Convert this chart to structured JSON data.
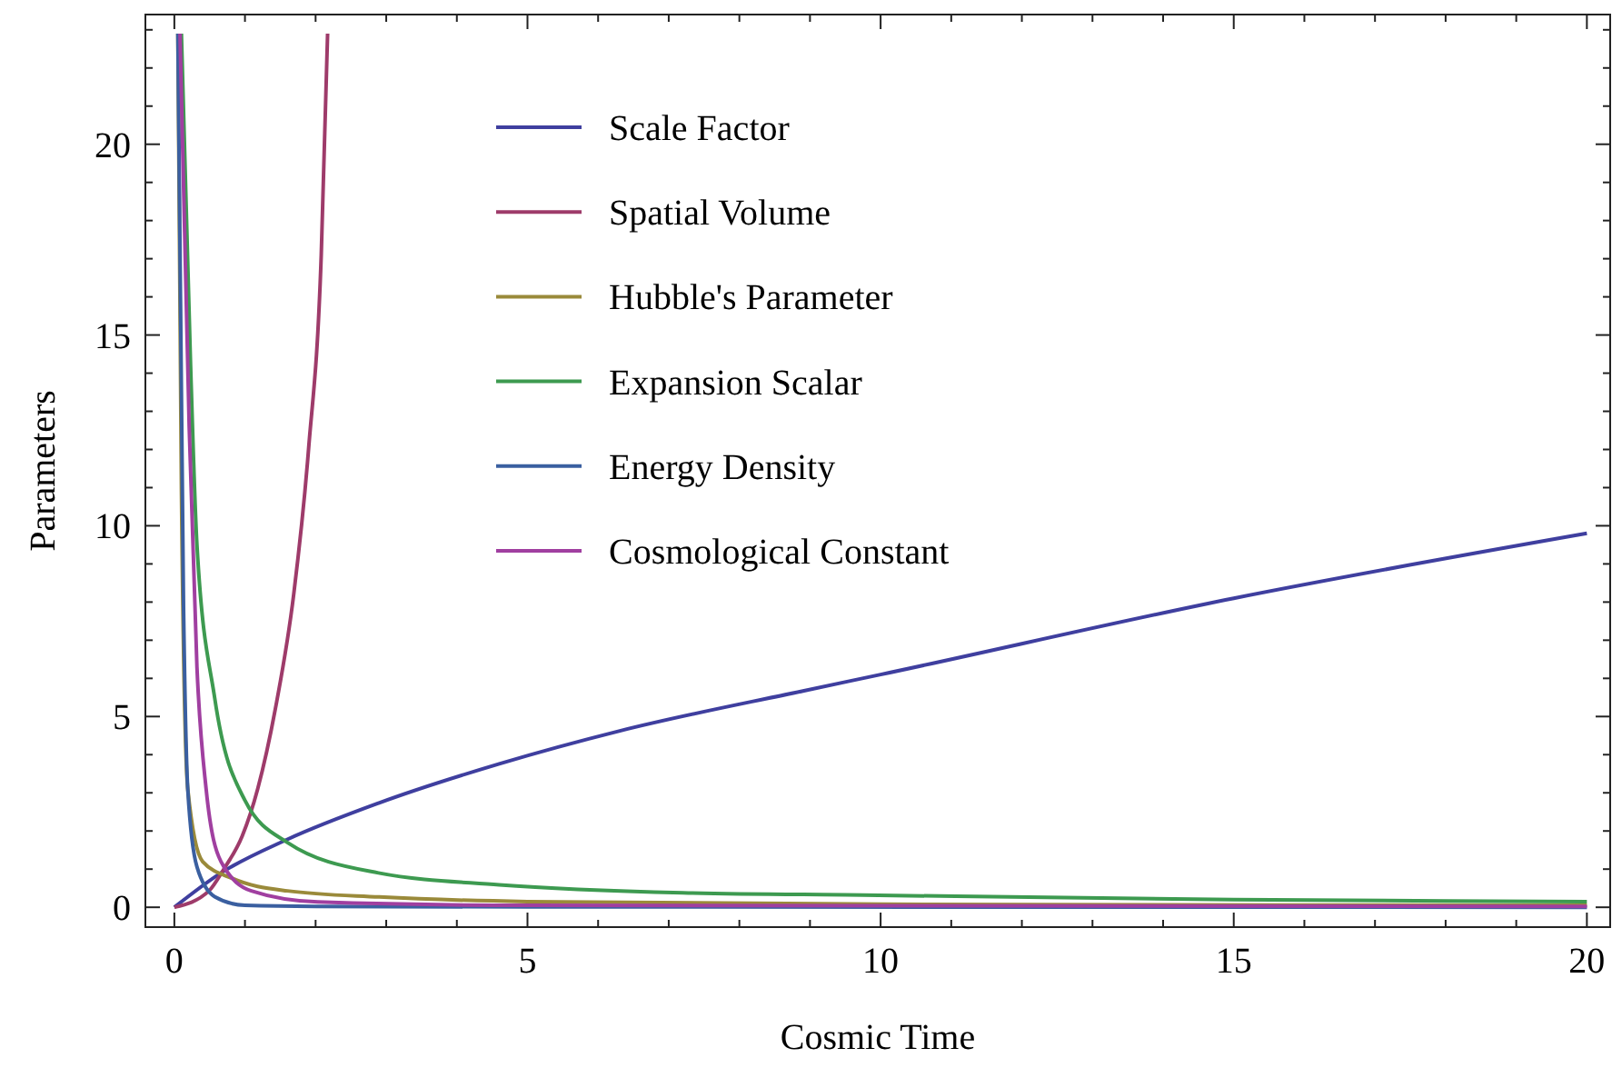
{
  "chart_data": {
    "type": "line",
    "xlabel": "Cosmic Time",
    "ylabel": "Parameters",
    "xlim": [
      -0.41,
      20.33
    ],
    "ylim": [
      -0.52,
      23.4
    ],
    "xticks": [
      0,
      {
        "value": 1,
        "label": null
      },
      {
        "value": 2,
        "label": null
      },
      {
        "value": 3,
        "label": null
      },
      {
        "value": 4,
        "label": null
      },
      5,
      {
        "value": 6,
        "label": null
      },
      {
        "value": 7,
        "label": null
      },
      {
        "value": 8,
        "label": null
      },
      {
        "value": 9,
        "label": null
      },
      10,
      {
        "value": 11,
        "label": null
      },
      {
        "value": 12,
        "label": null
      },
      {
        "value": 13,
        "label": null
      },
      {
        "value": 14,
        "label": null
      },
      15,
      {
        "value": 16,
        "label": null
      },
      {
        "value": 17,
        "label": null
      },
      {
        "value": 18,
        "label": null
      },
      {
        "value": 19,
        "label": null
      },
      20
    ],
    "yticks": [
      0,
      {
        "value": 1,
        "label": null
      },
      {
        "value": 2,
        "label": null
      },
      {
        "value": 3,
        "label": null
      },
      {
        "value": 4,
        "label": null
      },
      5,
      {
        "value": 6,
        "label": null
      },
      {
        "value": 7,
        "label": null
      },
      {
        "value": 8,
        "label": null
      },
      {
        "value": 9,
        "label": null
      },
      10,
      {
        "value": 11,
        "label": null
      },
      {
        "value": 12,
        "label": null
      },
      {
        "value": 13,
        "label": null
      },
      {
        "value": 14,
        "label": null
      },
      15,
      {
        "value": 16,
        "label": null
      },
      {
        "value": 17,
        "label": null
      },
      {
        "value": 18,
        "label": null
      },
      {
        "value": 19,
        "label": null
      },
      20,
      {
        "value": 21,
        "label": null
      },
      {
        "value": 22,
        "label": null
      },
      {
        "value": 23,
        "label": null
      }
    ],
    "grid": false,
    "legend": "top",
    "line_style": "solid",
    "series": [
      {
        "name": "Scale Factor",
        "color": "#3f3f9f",
        "x": [
          0,
          0.66,
          1.6,
          2.89,
          4.6,
          6.32,
          8.9,
          10,
          15,
          20
        ],
        "values": [
          0,
          0.9,
          1.78,
          2.73,
          3.76,
          4.63,
          5.67,
          6.1,
          8.1,
          9.8
        ]
      },
      {
        "name": "Spatial Volume",
        "color": "#9e3b6a",
        "x": [
          0,
          0.49,
          0.7,
          0.96,
          1.18,
          1.43,
          1.69,
          1.9,
          2.08,
          2.17
        ],
        "values": [
          0,
          0.43,
          1.0,
          1.86,
          3.1,
          5.2,
          8.2,
          12,
          17.1,
          22.9
        ]
      },
      {
        "name": "Hubble's Parameter",
        "color": "#9a8a3a",
        "x": [
          0.05,
          0.1,
          0.19,
          0.4,
          0.83,
          1.6,
          2.9,
          5,
          10,
          20
        ],
        "values": [
          22.9,
          11,
          3.1,
          1.2,
          0.75,
          0.43,
          0.27,
          0.15,
          0.08,
          0.05
        ]
      },
      {
        "name": "Expansion Scalar",
        "color": "#3d9a50",
        "x": [
          0.1,
          0.23,
          0.32,
          0.57,
          1.0,
          1.6,
          2.89,
          4.6,
          7.2,
          9.75,
          15,
          20
        ],
        "values": [
          22.9,
          14.2,
          9.5,
          5.5,
          2.8,
          1.7,
          0.9,
          0.59,
          0.38,
          0.32,
          0.2,
          0.15
        ]
      },
      {
        "name": "Energy Density",
        "color": "#3a5fa0",
        "x": [
          0.05,
          0.13,
          0.19,
          0.32,
          0.57,
          1.0,
          2,
          5,
          20
        ],
        "values": [
          22.9,
          7.9,
          3.1,
          1.06,
          0.28,
          0.05,
          0.02,
          0.01,
          0
        ]
      },
      {
        "name": "Cosmological Constant",
        "color": "#a03fa0",
        "x": [
          0.08,
          0.21,
          0.32,
          0.45,
          0.66,
          1.09,
          2.03,
          5,
          20
        ],
        "values": [
          22.9,
          12.6,
          6.3,
          3.1,
          1.2,
          0.43,
          0.14,
          0.05,
          0.02
        ]
      }
    ]
  }
}
